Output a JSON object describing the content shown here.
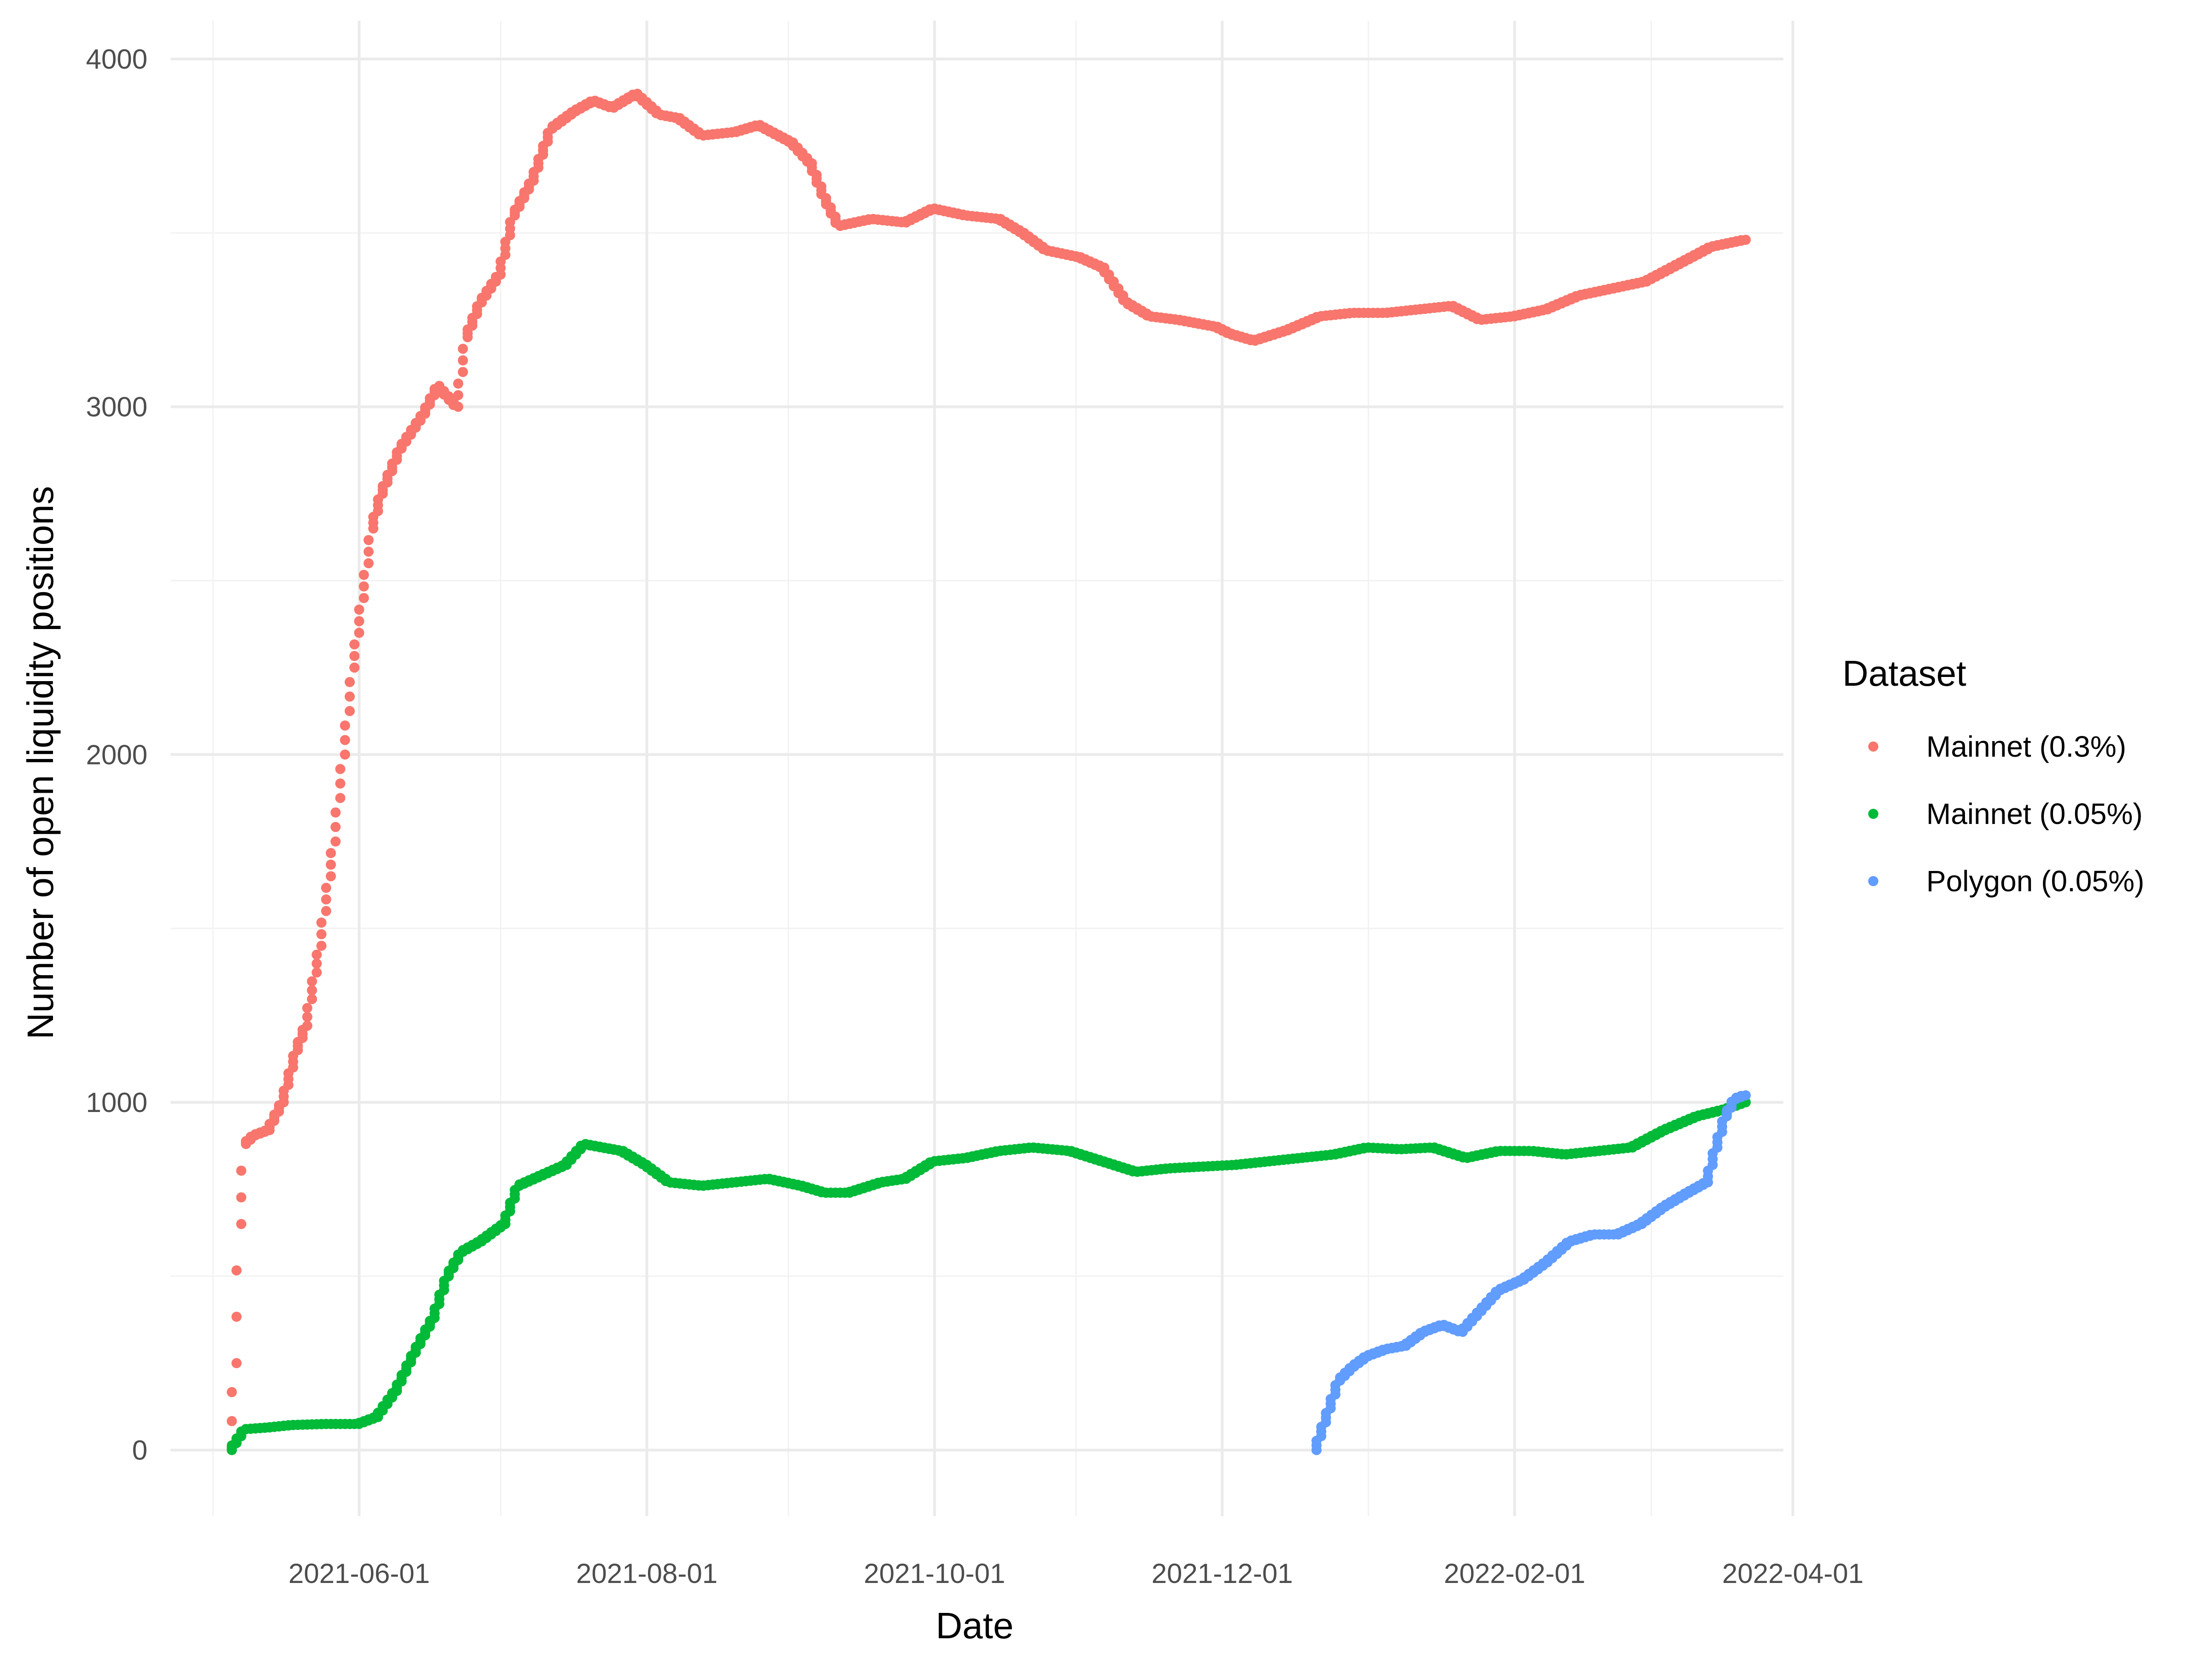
{
  "chart_data": {
    "type": "scatter",
    "title": "",
    "xlabel": "Date",
    "ylabel": "Number of open liquidity positions",
    "x_type": "date",
    "xlim": [
      "2021-04-22",
      "2022-03-30"
    ],
    "ylim": [
      -190,
      4110
    ],
    "x_ticks": [
      "2021-06-01",
      "2021-08-01",
      "2021-10-01",
      "2021-12-01",
      "2022-02-01",
      "2022-04-01"
    ],
    "y_ticks": [
      0,
      1000,
      2000,
      3000,
      4000
    ],
    "grid": true,
    "legend": {
      "title": "Dataset",
      "position": "right"
    },
    "series": [
      {
        "name": "Mainnet (0.3%)",
        "color": "#F8766D",
        "points": [
          [
            "2021-05-05",
            0
          ],
          [
            "2021-05-06",
            250
          ],
          [
            "2021-05-07",
            650
          ],
          [
            "2021-05-08",
            880
          ],
          [
            "2021-05-10",
            905
          ],
          [
            "2021-05-13",
            920
          ],
          [
            "2021-05-16",
            1000
          ],
          [
            "2021-05-19",
            1150
          ],
          [
            "2021-05-21",
            1220
          ],
          [
            "2021-05-24",
            1450
          ],
          [
            "2021-05-27",
            1750
          ],
          [
            "2021-05-29",
            2000
          ],
          [
            "2021-05-31",
            2250
          ],
          [
            "2021-06-02",
            2450
          ],
          [
            "2021-06-04",
            2650
          ],
          [
            "2021-06-06",
            2750
          ],
          [
            "2021-06-10",
            2880
          ],
          [
            "2021-06-15",
            2980
          ],
          [
            "2021-06-18",
            3060
          ],
          [
            "2021-06-22",
            3000
          ],
          [
            "2021-06-24",
            3200
          ],
          [
            "2021-06-27",
            3300
          ],
          [
            "2021-07-01",
            3380
          ],
          [
            "2021-07-04",
            3550
          ],
          [
            "2021-07-08",
            3650
          ],
          [
            "2021-07-12",
            3800
          ],
          [
            "2021-07-17",
            3850
          ],
          [
            "2021-07-21",
            3880
          ],
          [
            "2021-07-25",
            3860
          ],
          [
            "2021-07-30",
            3900
          ],
          [
            "2021-08-04",
            3840
          ],
          [
            "2021-08-08",
            3830
          ],
          [
            "2021-08-13",
            3780
          ],
          [
            "2021-08-20",
            3790
          ],
          [
            "2021-08-25",
            3810
          ],
          [
            "2021-09-01",
            3760
          ],
          [
            "2021-09-05",
            3700
          ],
          [
            "2021-09-08",
            3600
          ],
          [
            "2021-09-11",
            3520
          ],
          [
            "2021-09-18",
            3540
          ],
          [
            "2021-09-25",
            3530
          ],
          [
            "2021-10-01",
            3570
          ],
          [
            "2021-10-08",
            3550
          ],
          [
            "2021-10-15",
            3540
          ],
          [
            "2021-10-20",
            3500
          ],
          [
            "2021-10-25",
            3450
          ],
          [
            "2021-11-01",
            3430
          ],
          [
            "2021-11-06",
            3400
          ],
          [
            "2021-11-11",
            3300
          ],
          [
            "2021-11-16",
            3260
          ],
          [
            "2021-11-22",
            3250
          ],
          [
            "2021-11-30",
            3230
          ],
          [
            "2021-12-03",
            3210
          ],
          [
            "2021-12-08",
            3190
          ],
          [
            "2021-12-15",
            3220
          ],
          [
            "2021-12-22",
            3260
          ],
          [
            "2021-12-29",
            3270
          ],
          [
            "2022-01-05",
            3270
          ],
          [
            "2022-01-12",
            3280
          ],
          [
            "2022-01-19",
            3290
          ],
          [
            "2022-01-25",
            3250
          ],
          [
            "2022-02-01",
            3260
          ],
          [
            "2022-02-08",
            3280
          ],
          [
            "2022-02-15",
            3320
          ],
          [
            "2022-02-22",
            3340
          ],
          [
            "2022-03-01",
            3360
          ],
          [
            "2022-03-08",
            3410
          ],
          [
            "2022-03-15",
            3460
          ],
          [
            "2022-03-22",
            3480
          ]
        ]
      },
      {
        "name": "Mainnet (0.05%)",
        "color": "#00BA38",
        "points": [
          [
            "2021-05-05",
            0
          ],
          [
            "2021-05-08",
            60
          ],
          [
            "2021-05-13",
            65
          ],
          [
            "2021-05-18",
            72
          ],
          [
            "2021-05-25",
            75
          ],
          [
            "2021-06-01",
            75
          ],
          [
            "2021-06-05",
            95
          ],
          [
            "2021-06-09",
            170
          ],
          [
            "2021-06-13",
            280
          ],
          [
            "2021-06-17",
            380
          ],
          [
            "2021-06-20",
            500
          ],
          [
            "2021-06-23",
            570
          ],
          [
            "2021-06-27",
            600
          ],
          [
            "2021-07-02",
            650
          ],
          [
            "2021-07-05",
            760
          ],
          [
            "2021-07-10",
            790
          ],
          [
            "2021-07-15",
            820
          ],
          [
            "2021-07-19",
            880
          ],
          [
            "2021-07-23",
            870
          ],
          [
            "2021-07-27",
            860
          ],
          [
            "2021-08-01",
            820
          ],
          [
            "2021-08-06",
            770
          ],
          [
            "2021-08-13",
            760
          ],
          [
            "2021-08-20",
            770
          ],
          [
            "2021-08-27",
            780
          ],
          [
            "2021-09-03",
            760
          ],
          [
            "2021-09-08",
            740
          ],
          [
            "2021-09-13",
            740
          ],
          [
            "2021-09-20",
            770
          ],
          [
            "2021-09-25",
            780
          ],
          [
            "2021-10-01",
            830
          ],
          [
            "2021-10-08",
            840
          ],
          [
            "2021-10-15",
            860
          ],
          [
            "2021-10-22",
            870
          ],
          [
            "2021-10-30",
            860
          ],
          [
            "2021-11-06",
            830
          ],
          [
            "2021-11-13",
            800
          ],
          [
            "2021-11-20",
            810
          ],
          [
            "2021-11-27",
            815
          ],
          [
            "2021-12-04",
            820
          ],
          [
            "2021-12-11",
            830
          ],
          [
            "2021-12-18",
            840
          ],
          [
            "2021-12-25",
            850
          ],
          [
            "2022-01-01",
            870
          ],
          [
            "2022-01-08",
            865
          ],
          [
            "2022-01-15",
            870
          ],
          [
            "2022-01-22",
            840
          ],
          [
            "2022-01-29",
            860
          ],
          [
            "2022-02-05",
            860
          ],
          [
            "2022-02-12",
            850
          ],
          [
            "2022-02-19",
            860
          ],
          [
            "2022-02-26",
            870
          ],
          [
            "2022-03-05",
            920
          ],
          [
            "2022-03-12",
            960
          ],
          [
            "2022-03-18",
            980
          ],
          [
            "2022-03-22",
            1000
          ]
        ]
      },
      {
        "name": "Polygon (0.05%)",
        "color": "#619CFF",
        "points": [
          [
            "2021-12-21",
            0
          ],
          [
            "2021-12-23",
            80
          ],
          [
            "2021-12-26",
            200
          ],
          [
            "2021-12-29",
            240
          ],
          [
            "2022-01-01",
            270
          ],
          [
            "2022-01-05",
            290
          ],
          [
            "2022-01-09",
            300
          ],
          [
            "2022-01-13",
            340
          ],
          [
            "2022-01-17",
            360
          ],
          [
            "2022-01-21",
            340
          ],
          [
            "2022-01-25",
            400
          ],
          [
            "2022-01-29",
            460
          ],
          [
            "2022-02-03",
            490
          ],
          [
            "2022-02-08",
            540
          ],
          [
            "2022-02-13",
            600
          ],
          [
            "2022-02-18",
            620
          ],
          [
            "2022-02-23",
            620
          ],
          [
            "2022-02-28",
            650
          ],
          [
            "2022-03-05",
            700
          ],
          [
            "2022-03-10",
            740
          ],
          [
            "2022-03-14",
            770
          ],
          [
            "2022-03-16",
            870
          ],
          [
            "2022-03-18",
            960
          ],
          [
            "2022-03-20",
            1010
          ],
          [
            "2022-03-22",
            1020
          ]
        ]
      }
    ]
  }
}
